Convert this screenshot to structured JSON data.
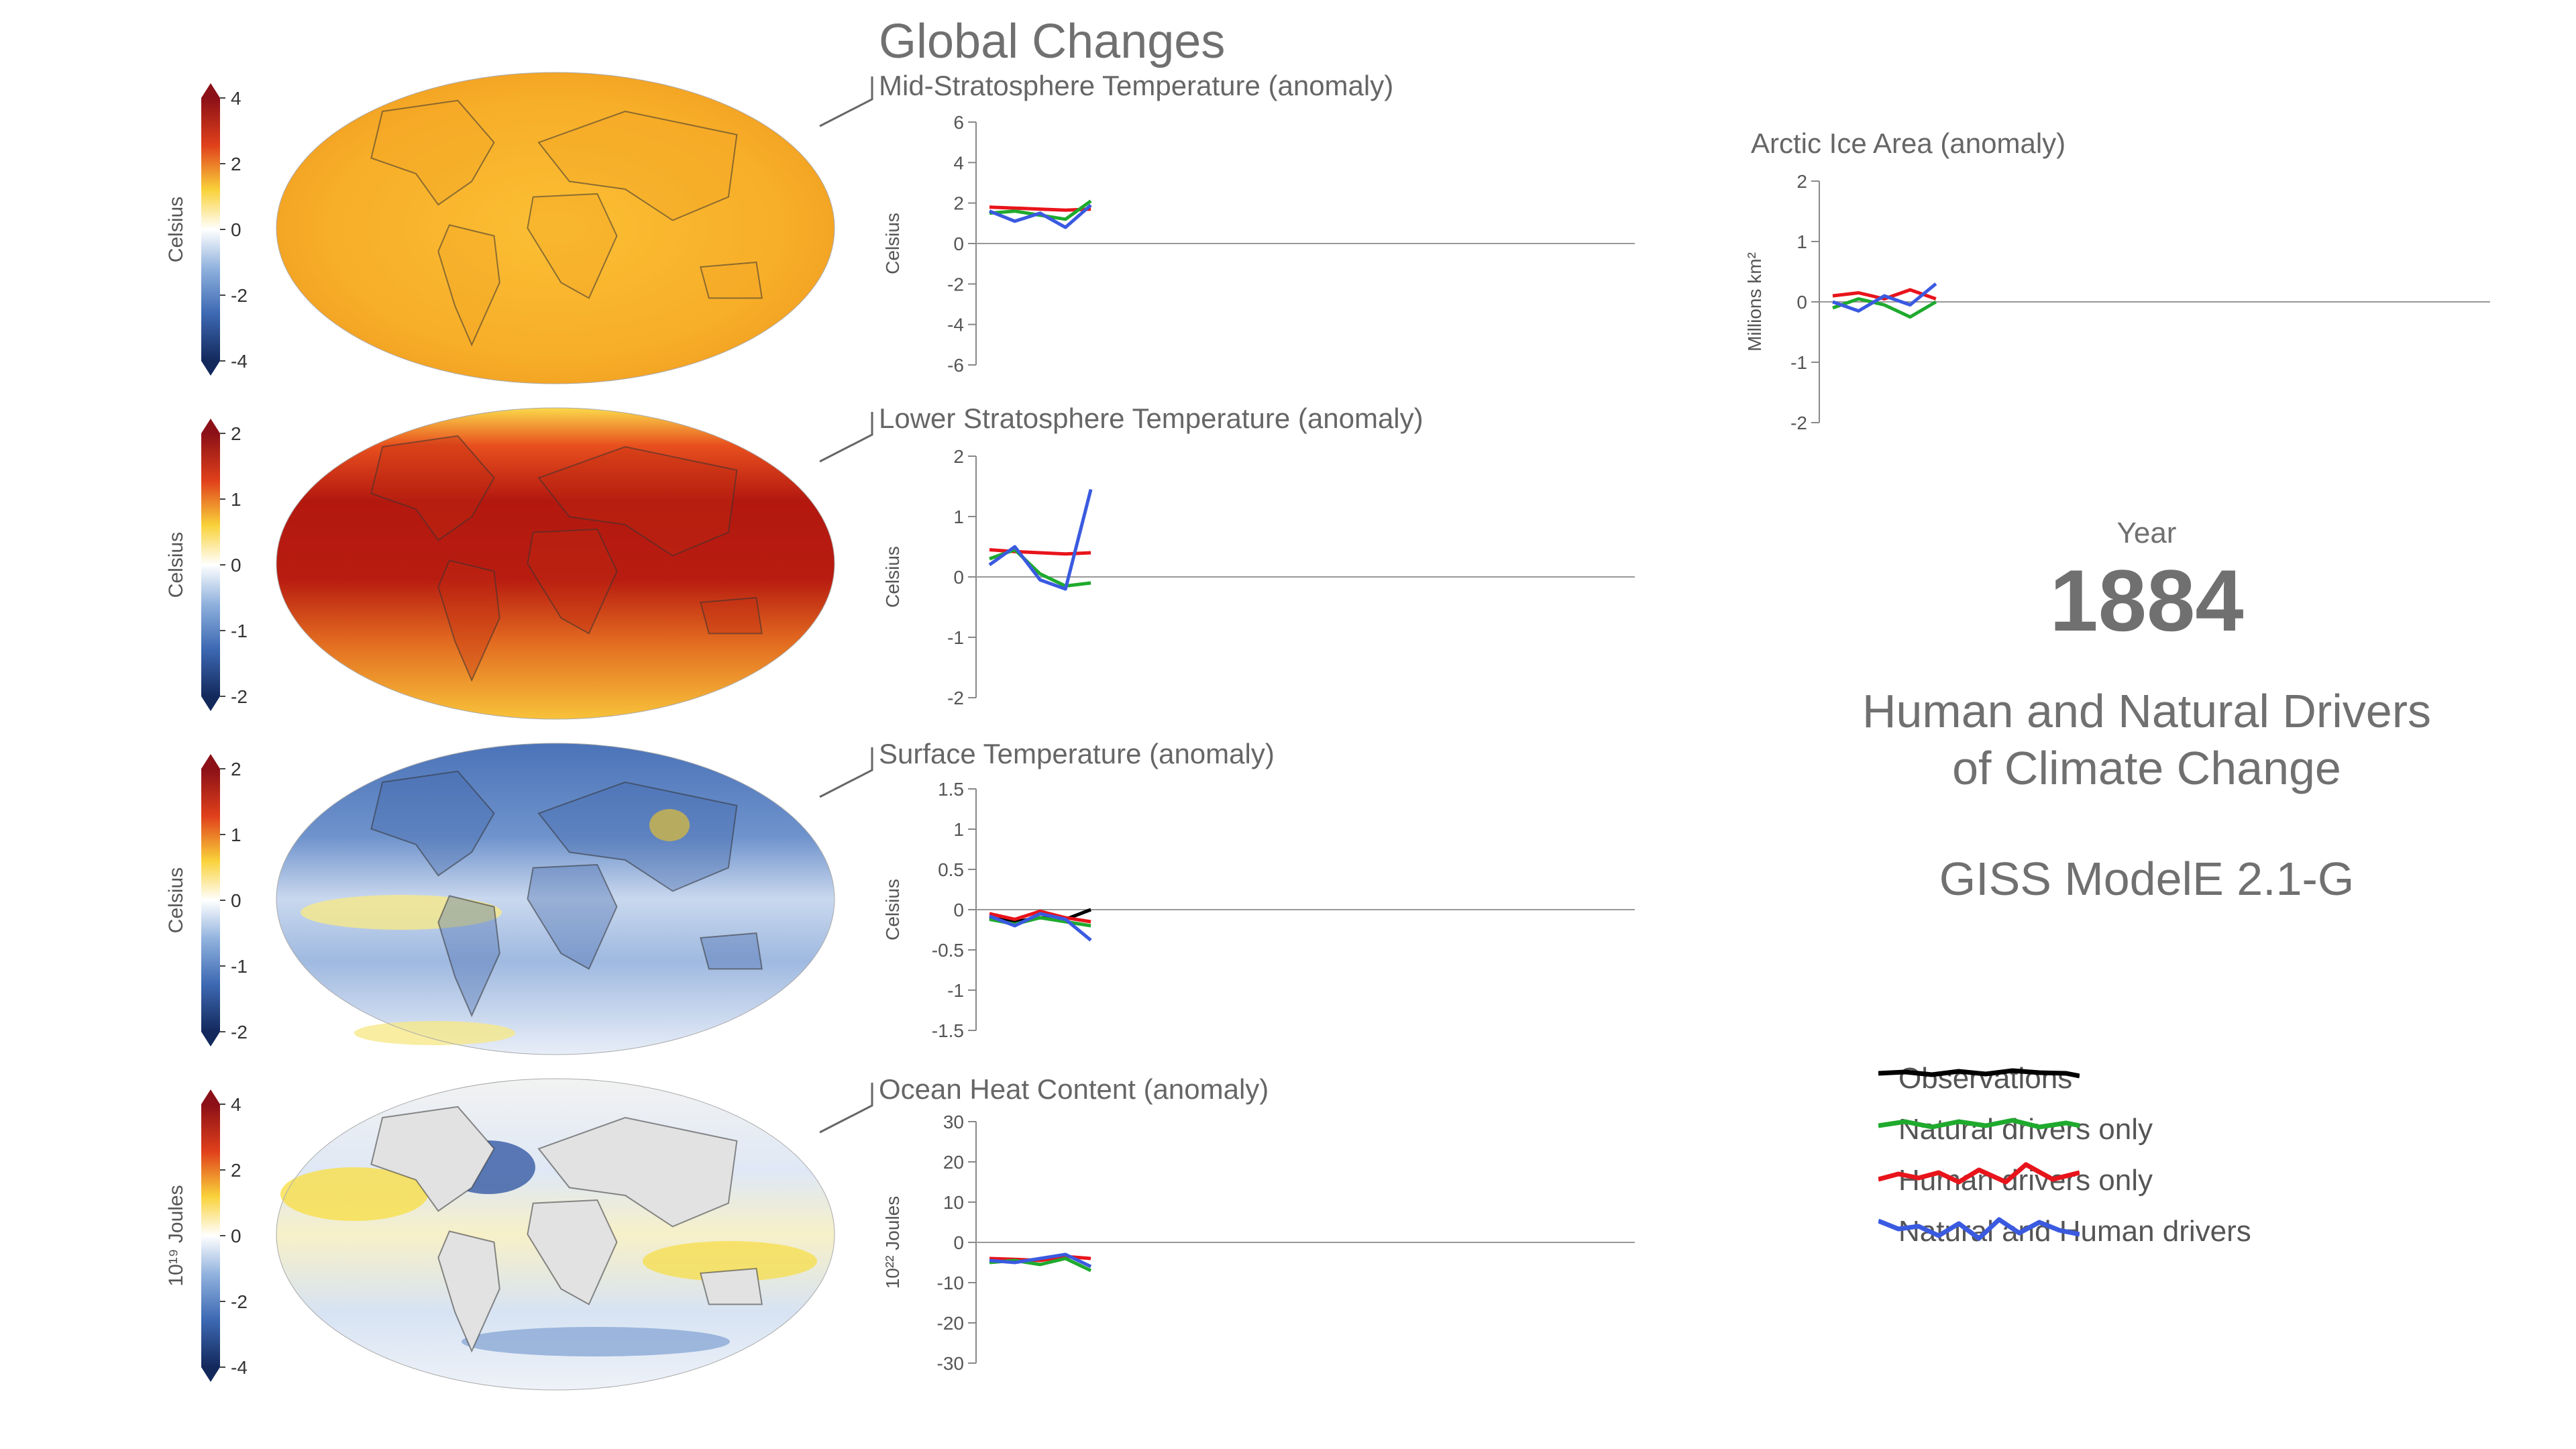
{
  "title": "Global Changes",
  "info": {
    "year_label": "Year",
    "year": "1884",
    "subtitle_line1": "Human and Natural Drivers",
    "subtitle_line2": "of Climate Change",
    "model": "GISS ModelE 2.1-G"
  },
  "colors": {
    "observations": "#000000",
    "natural": "#1faa2e",
    "human": "#e8141b",
    "combined": "#3a5ae0",
    "axis": "#888888",
    "text": "#666666"
  },
  "legend": [
    {
      "label": "Observations",
      "color": "#000000"
    },
    {
      "label": "Natural drivers only",
      "color": "#1faa2e"
    },
    {
      "label": "Human drivers only",
      "color": "#e8141b"
    },
    {
      "label": "Natural and Human drivers",
      "color": "#3a5ae0"
    }
  ],
  "maps": [
    {
      "name": "mid-stratosphere",
      "unit": "Celsius",
      "ticks": [
        "4",
        "2",
        "0",
        "-2",
        "-4"
      ],
      "theme": "warm"
    },
    {
      "name": "lower-stratosphere",
      "unit": "Celsius",
      "ticks": [
        "2",
        "1",
        "0",
        "-1",
        "-2"
      ],
      "theme": "hot"
    },
    {
      "name": "surface",
      "unit": "Celsius",
      "ticks": [
        "2",
        "1",
        "0",
        "-1",
        "-2"
      ],
      "theme": "cool"
    },
    {
      "name": "ocean-heat",
      "unit": "10¹⁹ Joules",
      "ticks": [
        "4",
        "2",
        "0",
        "-2",
        "-4"
      ],
      "theme": "ocean"
    }
  ],
  "chart_data": [
    {
      "type": "line",
      "title": "Mid-Stratosphere Temperature (anomaly)",
      "ylabel": "Celsius",
      "ylim": [
        -6,
        6
      ],
      "yticks": [
        "6",
        "4",
        "2",
        "0",
        "-2",
        "-4",
        "-6"
      ],
      "x": [
        1880,
        1881,
        1882,
        1883,
        1884
      ],
      "series": [
        {
          "name": "Human drivers only",
          "color": "#e8141b",
          "values": [
            1.8,
            1.75,
            1.7,
            1.65,
            1.7
          ]
        },
        {
          "name": "Natural drivers only",
          "color": "#1faa2e",
          "values": [
            1.5,
            1.6,
            1.4,
            1.2,
            2.1
          ]
        },
        {
          "name": "Natural and Human drivers",
          "color": "#3a5ae0",
          "values": [
            1.6,
            1.1,
            1.5,
            0.8,
            1.9
          ]
        }
      ]
    },
    {
      "type": "line",
      "title": "Lower Stratosphere Temperature (anomaly)",
      "ylabel": "Celsius",
      "ylim": [
        -2,
        2
      ],
      "yticks": [
        "2",
        "1",
        "0",
        "-1",
        "-2"
      ],
      "x": [
        1880,
        1881,
        1882,
        1883,
        1884
      ],
      "series": [
        {
          "name": "Human drivers only",
          "color": "#e8141b",
          "values": [
            0.45,
            0.42,
            0.4,
            0.38,
            0.4
          ]
        },
        {
          "name": "Natural drivers only",
          "color": "#1faa2e",
          "values": [
            0.3,
            0.45,
            0.05,
            -0.15,
            -0.1
          ]
        },
        {
          "name": "Natural and Human drivers",
          "color": "#3a5ae0",
          "values": [
            0.2,
            0.5,
            -0.05,
            -0.2,
            1.45
          ]
        }
      ]
    },
    {
      "type": "line",
      "title": "Surface Temperature (anomaly)",
      "ylabel": "Celsius",
      "ylim": [
        -1.5,
        1.5
      ],
      "yticks": [
        "1.5",
        "1",
        "0.5",
        "0",
        "-0.5",
        "-1",
        "-1.5"
      ],
      "x": [
        1880,
        1881,
        1882,
        1883,
        1884
      ],
      "series": [
        {
          "name": "Observations",
          "color": "#000000",
          "values": [
            -0.1,
            -0.15,
            -0.1,
            -0.12,
            0.0
          ]
        },
        {
          "name": "Human drivers only",
          "color": "#e8141b",
          "values": [
            -0.05,
            -0.12,
            -0.02,
            -0.1,
            -0.15
          ]
        },
        {
          "name": "Natural drivers only",
          "color": "#1faa2e",
          "values": [
            -0.12,
            -0.18,
            -0.1,
            -0.15,
            -0.2
          ]
        },
        {
          "name": "Natural and Human drivers",
          "color": "#3a5ae0",
          "values": [
            -0.08,
            -0.2,
            -0.05,
            -0.12,
            -0.38
          ]
        }
      ]
    },
    {
      "type": "line",
      "title": "Ocean Heat Content (anomaly)",
      "ylabel": "10²² Joules",
      "ylim": [
        -30,
        30
      ],
      "yticks": [
        "30",
        "20",
        "10",
        "0",
        "-10",
        "-20",
        "-30"
      ],
      "x": [
        1880,
        1881,
        1882,
        1883,
        1884
      ],
      "series": [
        {
          "name": "Human drivers only",
          "color": "#e8141b",
          "values": [
            -4,
            -4.2,
            -4.5,
            -3.5,
            -4
          ]
        },
        {
          "name": "Natural drivers only",
          "color": "#1faa2e",
          "values": [
            -5,
            -4.5,
            -5.5,
            -4,
            -7
          ]
        },
        {
          "name": "Natural and Human drivers",
          "color": "#3a5ae0",
          "values": [
            -4.5,
            -5,
            -4,
            -3,
            -6
          ]
        }
      ]
    },
    {
      "type": "line",
      "title": "Arctic Ice Area (anomaly)",
      "ylabel": "Millions km²",
      "ylim": [
        -2,
        2
      ],
      "yticks": [
        "2",
        "1",
        "0",
        "-1",
        "-2"
      ],
      "x": [
        1880,
        1881,
        1882,
        1883,
        1884
      ],
      "series": [
        {
          "name": "Human drivers only",
          "color": "#e8141b",
          "values": [
            0.1,
            0.15,
            0.05,
            0.2,
            0.05
          ]
        },
        {
          "name": "Natural drivers only",
          "color": "#1faa2e",
          "values": [
            -0.1,
            0.05,
            -0.05,
            -0.25,
            0.0
          ]
        },
        {
          "name": "Natural and Human drivers",
          "color": "#3a5ae0",
          "values": [
            0.0,
            -0.15,
            0.1,
            -0.05,
            0.3
          ]
        }
      ]
    }
  ]
}
